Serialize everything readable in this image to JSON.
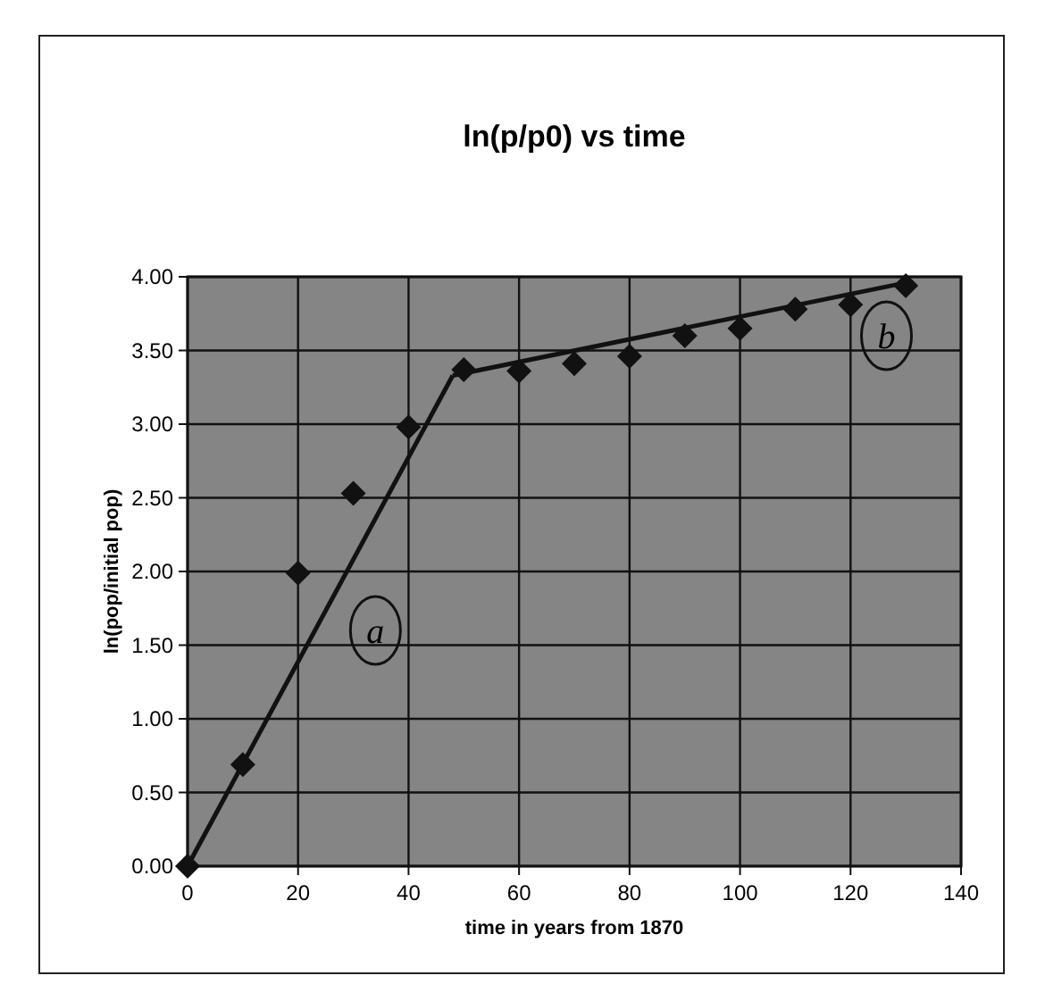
{
  "chart_data": {
    "type": "scatter",
    "title": "ln(p/p0) vs time",
    "xlabel": "time in years from 1870",
    "ylabel": "ln(pop/initial pop)",
    "xlim": [
      0,
      140
    ],
    "xticks": [
      0,
      20,
      40,
      60,
      80,
      100,
      120,
      140
    ],
    "ylim": [
      0,
      4
    ],
    "yticks": [
      {
        "value": 0,
        "label": "0.00"
      },
      {
        "value": 0.5,
        "label": "0.50"
      },
      {
        "value": 1,
        "label": "1.00"
      },
      {
        "value": 1.5,
        "label": "1.50"
      },
      {
        "value": 2,
        "label": "2.00"
      },
      {
        "value": 2.5,
        "label": "2.50"
      },
      {
        "value": 3,
        "label": "3.00"
      },
      {
        "value": 3.5,
        "label": "3.50"
      },
      {
        "value": 4,
        "label": "4.00"
      }
    ],
    "grid": true,
    "marker": "diamond",
    "series": [
      {
        "color": "#111111",
        "x": [
          0,
          10,
          20,
          30,
          40,
          50,
          60,
          70,
          80,
          90,
          100,
          110,
          120,
          130
        ],
        "values": [
          0,
          0.69,
          1.99,
          2.53,
          2.98,
          3.37,
          3.36,
          3.41,
          3.46,
          3.6,
          3.65,
          3.78,
          3.81,
          3.94
        ]
      },
      {
        "type": "line",
        "marker": "none",
        "color": "#111111",
        "x": [
          0,
          48
        ],
        "values": [
          0,
          3.33
        ]
      },
      {
        "type": "line",
        "marker": "none",
        "color": "#111111",
        "x": [
          48,
          130
        ],
        "values": [
          3.33,
          3.96
        ]
      }
    ],
    "annotations": [
      {
        "text": "a",
        "x": 34,
        "y": 1.6
      },
      {
        "text": "b",
        "x": 126.5,
        "y": 3.6
      }
    ]
  }
}
